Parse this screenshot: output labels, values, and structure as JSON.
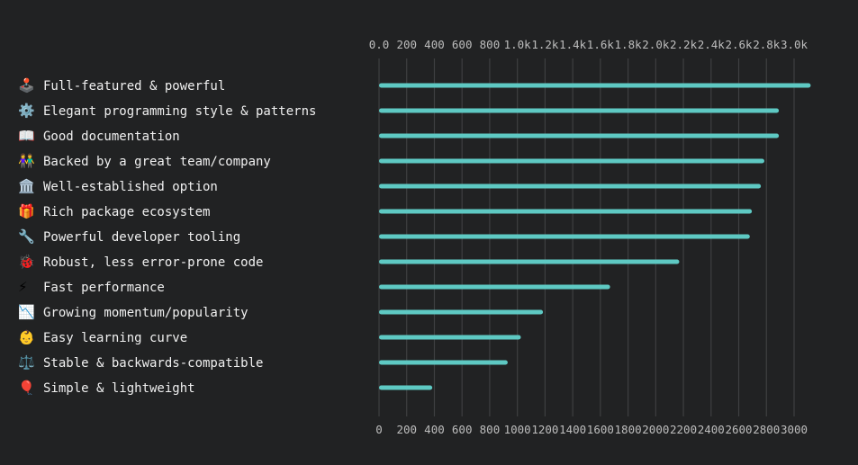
{
  "colors": {
    "background": "#212223",
    "bar": "#5ec9c3",
    "grid": "#3e3f41",
    "label": "#f0f0f0",
    "tick": "#bdbdbd"
  },
  "chart_data": {
    "type": "bar",
    "orientation": "horizontal",
    "title": "",
    "xlabel": "",
    "ylabel": "",
    "xlim": [
      0,
      3000
    ],
    "grid": true,
    "top_ticks": [
      "0.0",
      "200",
      "400",
      "600",
      "800",
      "1.0k",
      "1.2k",
      "1.4k",
      "1.6k",
      "1.8k",
      "2.0k",
      "2.2k",
      "2.4k",
      "2.6k",
      "2.8k",
      "3.0k"
    ],
    "bottom_ticks": [
      "0",
      "200",
      "400",
      "600",
      "800",
      "1000",
      "1200",
      "1400",
      "1600",
      "1800",
      "2000",
      "2200",
      "2400",
      "2600",
      "2800",
      "3000"
    ],
    "categories": [
      {
        "icon": "🕹️",
        "label": "Full-featured & powerful",
        "value": 3120
      },
      {
        "icon": "⚙️",
        "label": "Elegant programming style & patterns",
        "value": 2890
      },
      {
        "icon": "📖",
        "label": "Good documentation",
        "value": 2890
      },
      {
        "icon": "👫",
        "label": "Backed by a great team/company",
        "value": 2785
      },
      {
        "icon": "🏛️",
        "label": "Well-established option",
        "value": 2760
      },
      {
        "icon": "🎁",
        "label": "Rich package ecosystem",
        "value": 2695
      },
      {
        "icon": "🔧",
        "label": "Powerful developer tooling",
        "value": 2680
      },
      {
        "icon": "🐞",
        "label": "Robust, less error-prone code",
        "value": 2170
      },
      {
        "icon": "⚡",
        "label": "Fast performance",
        "value": 1670
      },
      {
        "icon": "📉",
        "label": "Growing momentum/popularity",
        "value": 1185
      },
      {
        "icon": "👶",
        "label": "Easy learning curve",
        "value": 1025
      },
      {
        "icon": "⚖️",
        "label": "Stable & backwards-compatible",
        "value": 930
      },
      {
        "icon": "🎈",
        "label": "Simple & lightweight",
        "value": 385
      }
    ]
  }
}
